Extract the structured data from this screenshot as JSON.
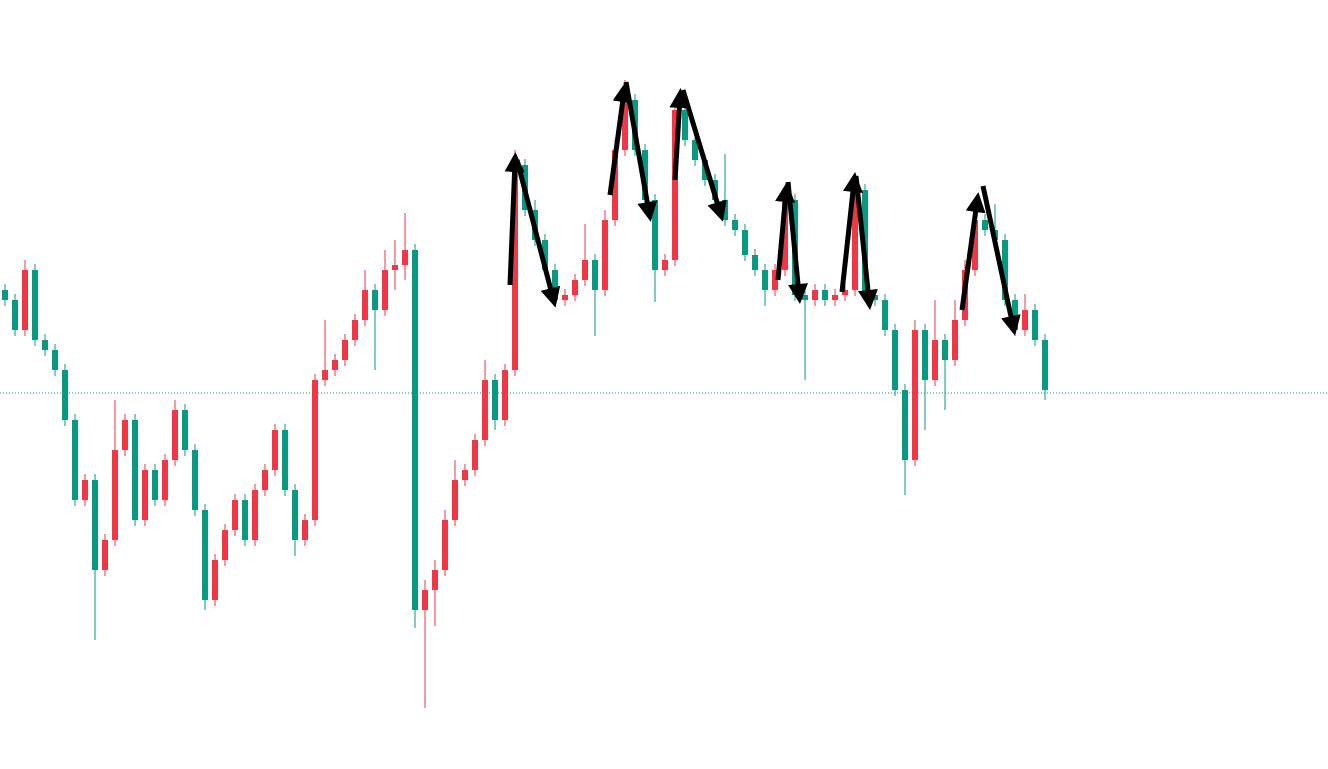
{
  "chart_data": {
    "type": "candlestick",
    "open": [
      479,
      469,
      439,
      499,
      429,
      419,
      399,
      349,
      269,
      289,
      199,
      229,
      319,
      349,
      249,
      299,
      269,
      309,
      359,
      319,
      259,
      169,
      209,
      239,
      269,
      229,
      279,
      299,
      339,
      279,
      229,
      249,
      389,
      399,
      409,
      429,
      449,
      479,
      459,
      499,
      504,
      519,
      159,
      179,
      199,
      249,
      289,
      299,
      329,
      389,
      349,
      399,
      604,
      559,
      529,
      499,
      469,
      474,
      489,
      509,
      479,
      549,
      619,
      669,
      619,
      569,
      499,
      509,
      659,
      629,
      609,
      589,
      569,
      549,
      539,
      514,
      499,
      479,
      499,
      569,
      474,
      469,
      479,
      469,
      474,
      479,
      579,
      474,
      469,
      439,
      379,
      309,
      439,
      389,
      429,
      409,
      449,
      499,
      549,
      539,
      529,
      469,
      439,
      459,
      429
    ],
    "high": [
      485,
      475,
      509,
      505,
      435,
      425,
      405,
      355,
      295,
      295,
      235,
      369,
      355,
      355,
      305,
      305,
      315,
      369,
      365,
      325,
      265,
      215,
      245,
      275,
      275,
      285,
      305,
      345,
      345,
      285,
      255,
      395,
      449,
      415,
      435,
      455,
      499,
      485,
      519,
      529,
      556,
      525,
      189,
      209,
      259,
      309,
      305,
      335,
      409,
      395,
      405,
      619,
      610,
      569,
      535,
      505,
      480,
      495,
      545,
      515,
      559,
      629,
      689,
      675,
      625,
      575,
      515,
      669,
      665,
      635,
      615,
      595,
      615,
      555,
      545,
      520,
      505,
      505,
      579,
      575,
      480,
      485,
      485,
      480,
      485,
      589,
      585,
      480,
      475,
      445,
      385,
      449,
      445,
      469,
      435,
      469,
      509,
      559,
      555,
      565,
      535,
      475,
      475,
      465,
      435
    ],
    "low": [
      463,
      433,
      433,
      423,
      413,
      393,
      343,
      263,
      263,
      129,
      193,
      223,
      313,
      243,
      243,
      263,
      263,
      303,
      313,
      253,
      159,
      163,
      203,
      233,
      223,
      223,
      273,
      293,
      273,
      213,
      223,
      243,
      383,
      393,
      403,
      423,
      443,
      399,
      453,
      479,
      489,
      141,
      61,
      143,
      193,
      243,
      283,
      293,
      323,
      339,
      343,
      393,
      553,
      523,
      493,
      463,
      463,
      468,
      483,
      433,
      473,
      543,
      613,
      613,
      563,
      467,
      493,
      503,
      623,
      603,
      583,
      563,
      543,
      533,
      508,
      493,
      463,
      473,
      493,
      468,
      389,
      463,
      463,
      463,
      468,
      473,
      468,
      463,
      433,
      373,
      274,
      303,
      339,
      383,
      359,
      403,
      443,
      493,
      533,
      523,
      463,
      433,
      433,
      423,
      369
    ],
    "close": [
      469,
      439,
      499,
      429,
      419,
      399,
      349,
      269,
      289,
      199,
      229,
      319,
      349,
      249,
      299,
      269,
      309,
      359,
      319,
      259,
      169,
      209,
      239,
      269,
      229,
      279,
      299,
      339,
      279,
      229,
      249,
      389,
      399,
      409,
      429,
      449,
      479,
      459,
      499,
      504,
      519,
      159,
      179,
      199,
      249,
      289,
      299,
      329,
      389,
      349,
      399,
      604,
      559,
      529,
      499,
      469,
      474,
      489,
      509,
      479,
      549,
      619,
      669,
      619,
      569,
      499,
      509,
      659,
      629,
      609,
      589,
      569,
      549,
      539,
      514,
      499,
      479,
      499,
      569,
      474,
      469,
      479,
      469,
      474,
      479,
      579,
      474,
      469,
      439,
      379,
      309,
      439,
      389,
      429,
      409,
      449,
      499,
      549,
      539,
      529,
      469,
      439,
      459,
      429,
      379
    ],
    "up_color": "#f23645",
    "down_color": "#089981",
    "ylim": [
      0,
      769
    ],
    "price_line": 376,
    "price_line_color": "#089981"
  }
}
